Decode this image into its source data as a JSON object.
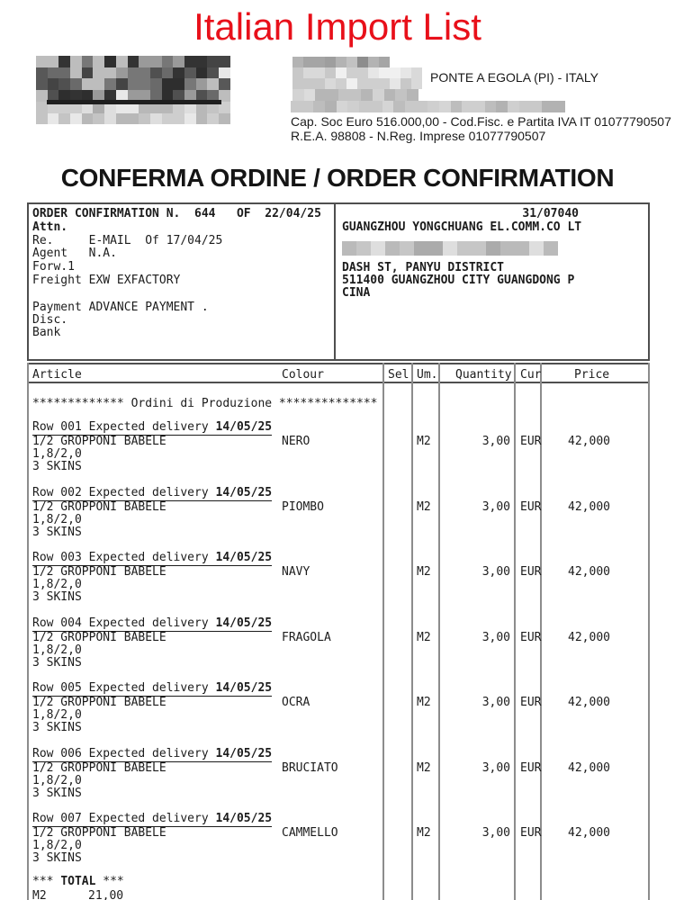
{
  "page_title": "Italian Import List",
  "colors": {
    "title_red": "#e8101a",
    "text": "#1c1c1c",
    "grid_gray": "#8c8c8c"
  },
  "supplier": {
    "location": "PONTE A EGOLA (PI) - ITALY",
    "capital_fiscal": "Cap. Soc Euro 516.000,00 - Cod.Fisc. e Partita IVA IT 01077790507",
    "rea": "R.E.A. 98808 - N.Reg. Imprese 01077790507"
  },
  "document_title": "CONFERMA ORDINE / ORDER CONFIRMATION",
  "order_info": {
    "confirmation": "ORDER CONFIRMATION N.  644   OF  22/04/25",
    "attn": "Attn.",
    "re": "Re.     E-MAIL  Of 17/04/25",
    "agent": "Agent   N.A.",
    "forw": "Forw.1",
    "freight": "Freight EXW EXFACTORY",
    "payment": "Payment ADVANCE PAYMENT .",
    "disc": "Disc.",
    "bank": "Bank"
  },
  "customer": {
    "code": "31/07040",
    "name": "GUANGZHOU YONGCHUANG EL.COMM.CO LT",
    "address": "DASH ST, PANYU DISTRICT",
    "city": "511400 GUANGZHOU CITY GUANGDONG P",
    "country": "CINA"
  },
  "table": {
    "headers": {
      "article": "Article",
      "colour": "Colour",
      "sel": "Sel",
      "um": "Um.",
      "quantity": "Quantity",
      "cur": "Cur",
      "price": "Price"
    },
    "section_line": "************* Ordini di Produzione **************",
    "rows": [
      {
        "label": "Row 001 Expected delivery ",
        "date": "14/05/25",
        "article": "1/2 GROPPONI BABELE",
        "colour": "NERO",
        "um": "M2",
        "qty": "3,00",
        "cur": "EUR",
        "price": "42,000",
        "spec": "1,8/2,0",
        "skins": "3 SKINS"
      },
      {
        "label": "Row 002 Expected delivery ",
        "date": "14/05/25",
        "article": "1/2 GROPPONI BABELE",
        "colour": "PIOMBO",
        "um": "M2",
        "qty": "3,00",
        "cur": "EUR",
        "price": "42,000",
        "spec": "1,8/2,0",
        "skins": "3 SKINS"
      },
      {
        "label": "Row 003 Expected delivery ",
        "date": "14/05/25",
        "article": "1/2 GROPPONI BABELE",
        "colour": "NAVY",
        "um": "M2",
        "qty": "3,00",
        "cur": "EUR",
        "price": "42,000",
        "spec": "1,8/2,0",
        "skins": "3 SKINS"
      },
      {
        "label": "Row 004 Expected delivery ",
        "date": "14/05/25",
        "article": "1/2 GROPPONI BABELE",
        "colour": "FRAGOLA",
        "um": "M2",
        "qty": "3,00",
        "cur": "EUR",
        "price": "42,000",
        "spec": "1,8/2,0",
        "skins": "3 SKINS"
      },
      {
        "label": "Row 005 Expected delivery ",
        "date": "14/05/25",
        "article": "1/2 GROPPONI BABELE",
        "colour": "OCRA",
        "um": "M2",
        "qty": "3,00",
        "cur": "EUR",
        "price": "42,000",
        "spec": "1,8/2,0",
        "skins": "3 SKINS"
      },
      {
        "label": "Row 006 Expected delivery ",
        "date": "14/05/25",
        "article": "1/2 GROPPONI BABELE",
        "colour": "BRUCIATO",
        "um": "M2",
        "qty": "3,00",
        "cur": "EUR",
        "price": "42,000",
        "spec": "1,8/2,0",
        "skins": "3 SKINS"
      },
      {
        "label": "Row 007 Expected delivery ",
        "date": "14/05/25",
        "article": "1/2 GROPPONI BABELE",
        "colour": "CAMMELLO",
        "um": "M2",
        "qty": "3,00",
        "cur": "EUR",
        "price": "42,000",
        "spec": "1,8/2,0",
        "skins": "3 SKINS"
      }
    ],
    "total": {
      "stars_left": "*** ",
      "label": "TOTAL",
      "stars_right": " ***",
      "um": "M2",
      "quantity": "21,00"
    }
  }
}
